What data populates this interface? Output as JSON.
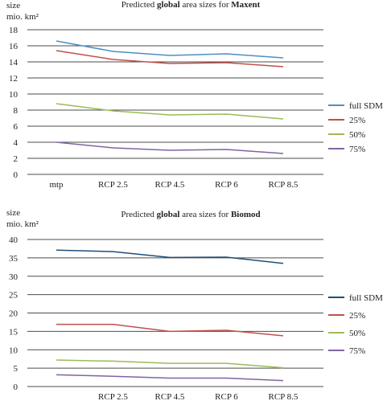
{
  "chart_data": [
    {
      "type": "line",
      "title": {
        "prefix": "Predicted ",
        "mid": "global",
        "middle": " area sizes for ",
        "model": "Maxent"
      },
      "ylabel": {
        "line1": "size",
        "line2": "mio. km²"
      },
      "categories": [
        "mtp",
        "RCP 2.5",
        "RCP 4.5",
        "RCP 6",
        "RCP 8.5"
      ],
      "ylim": [
        0,
        18
      ],
      "yticks": [
        0,
        2,
        4,
        6,
        8,
        10,
        12,
        14,
        16,
        18
      ],
      "grid": true,
      "legend_position": "right",
      "series": [
        {
          "name": "full SDM",
          "color": "#4f8fc0",
          "values": [
            16.6,
            15.3,
            14.8,
            15.0,
            14.5
          ]
        },
        {
          "name": "25%",
          "color": "#c0504d",
          "values": [
            15.4,
            14.3,
            13.8,
            13.9,
            13.4
          ]
        },
        {
          "name": "50%",
          "color": "#9bbb59",
          "values": [
            8.8,
            7.9,
            7.4,
            7.5,
            6.9
          ]
        },
        {
          "name": "75%",
          "color": "#8064a2",
          "values": [
            4.0,
            3.3,
            3.0,
            3.1,
            2.6
          ]
        }
      ]
    },
    {
      "type": "line",
      "title": {
        "prefix": "Predicted ",
        "mid": "global",
        "middle": " area sizes for ",
        "model": "Biomod"
      },
      "ylabel": {
        "line1": "size",
        "line2": "mio. km²"
      },
      "categories": [
        "",
        "RCP 2.5",
        "RCP 4.5",
        "RCP 6",
        "RCP 8.5"
      ],
      "ylim": [
        0,
        40
      ],
      "yticks": [
        0,
        5,
        10,
        15,
        20,
        25,
        30,
        35,
        40
      ],
      "grid": true,
      "legend_position": "right",
      "series": [
        {
          "name": "full SDM",
          "color": "#1f4e79",
          "values": [
            37.1,
            36.7,
            35.1,
            35.2,
            33.5
          ]
        },
        {
          "name": "25%",
          "color": "#c0504d",
          "values": [
            16.9,
            16.9,
            15.0,
            15.3,
            13.8
          ]
        },
        {
          "name": "50%",
          "color": "#9bbb59",
          "values": [
            7.2,
            6.9,
            6.3,
            6.3,
            5.1
          ]
        },
        {
          "name": "75%",
          "color": "#8064a2",
          "values": [
            3.2,
            2.8,
            2.3,
            2.3,
            1.6
          ]
        }
      ]
    }
  ]
}
